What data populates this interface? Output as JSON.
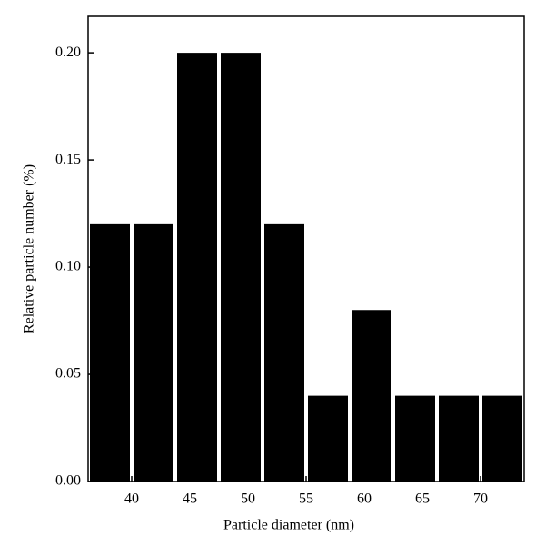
{
  "chart_data": {
    "type": "histogram",
    "xlabel": "Particle diameter (nm)",
    "ylabel": "Relative particle number (%)",
    "bins": [
      36.25,
      40,
      43.75,
      47.5,
      51.25,
      55,
      58.75,
      62.5,
      66.25,
      70,
      73.75
    ],
    "values": [
      0.12,
      0.12,
      0.2,
      0.2,
      0.12,
      0.04,
      0.08,
      0.04,
      0.04,
      0.04
    ],
    "color": "#000000",
    "xlim": [
      36.25,
      73.75
    ],
    "xticks": [
      40,
      45,
      50,
      55,
      60,
      65,
      70
    ],
    "ylim": [
      0,
      0.217
    ],
    "yticks": [
      {
        "value": 0,
        "label": "0.00"
      },
      {
        "value": 0.05,
        "label": "0.05"
      },
      {
        "value": 0.1,
        "label": "0.10"
      },
      {
        "value": 0.15,
        "label": "0.15"
      },
      {
        "value": 0.2,
        "label": "0.20"
      }
    ]
  }
}
